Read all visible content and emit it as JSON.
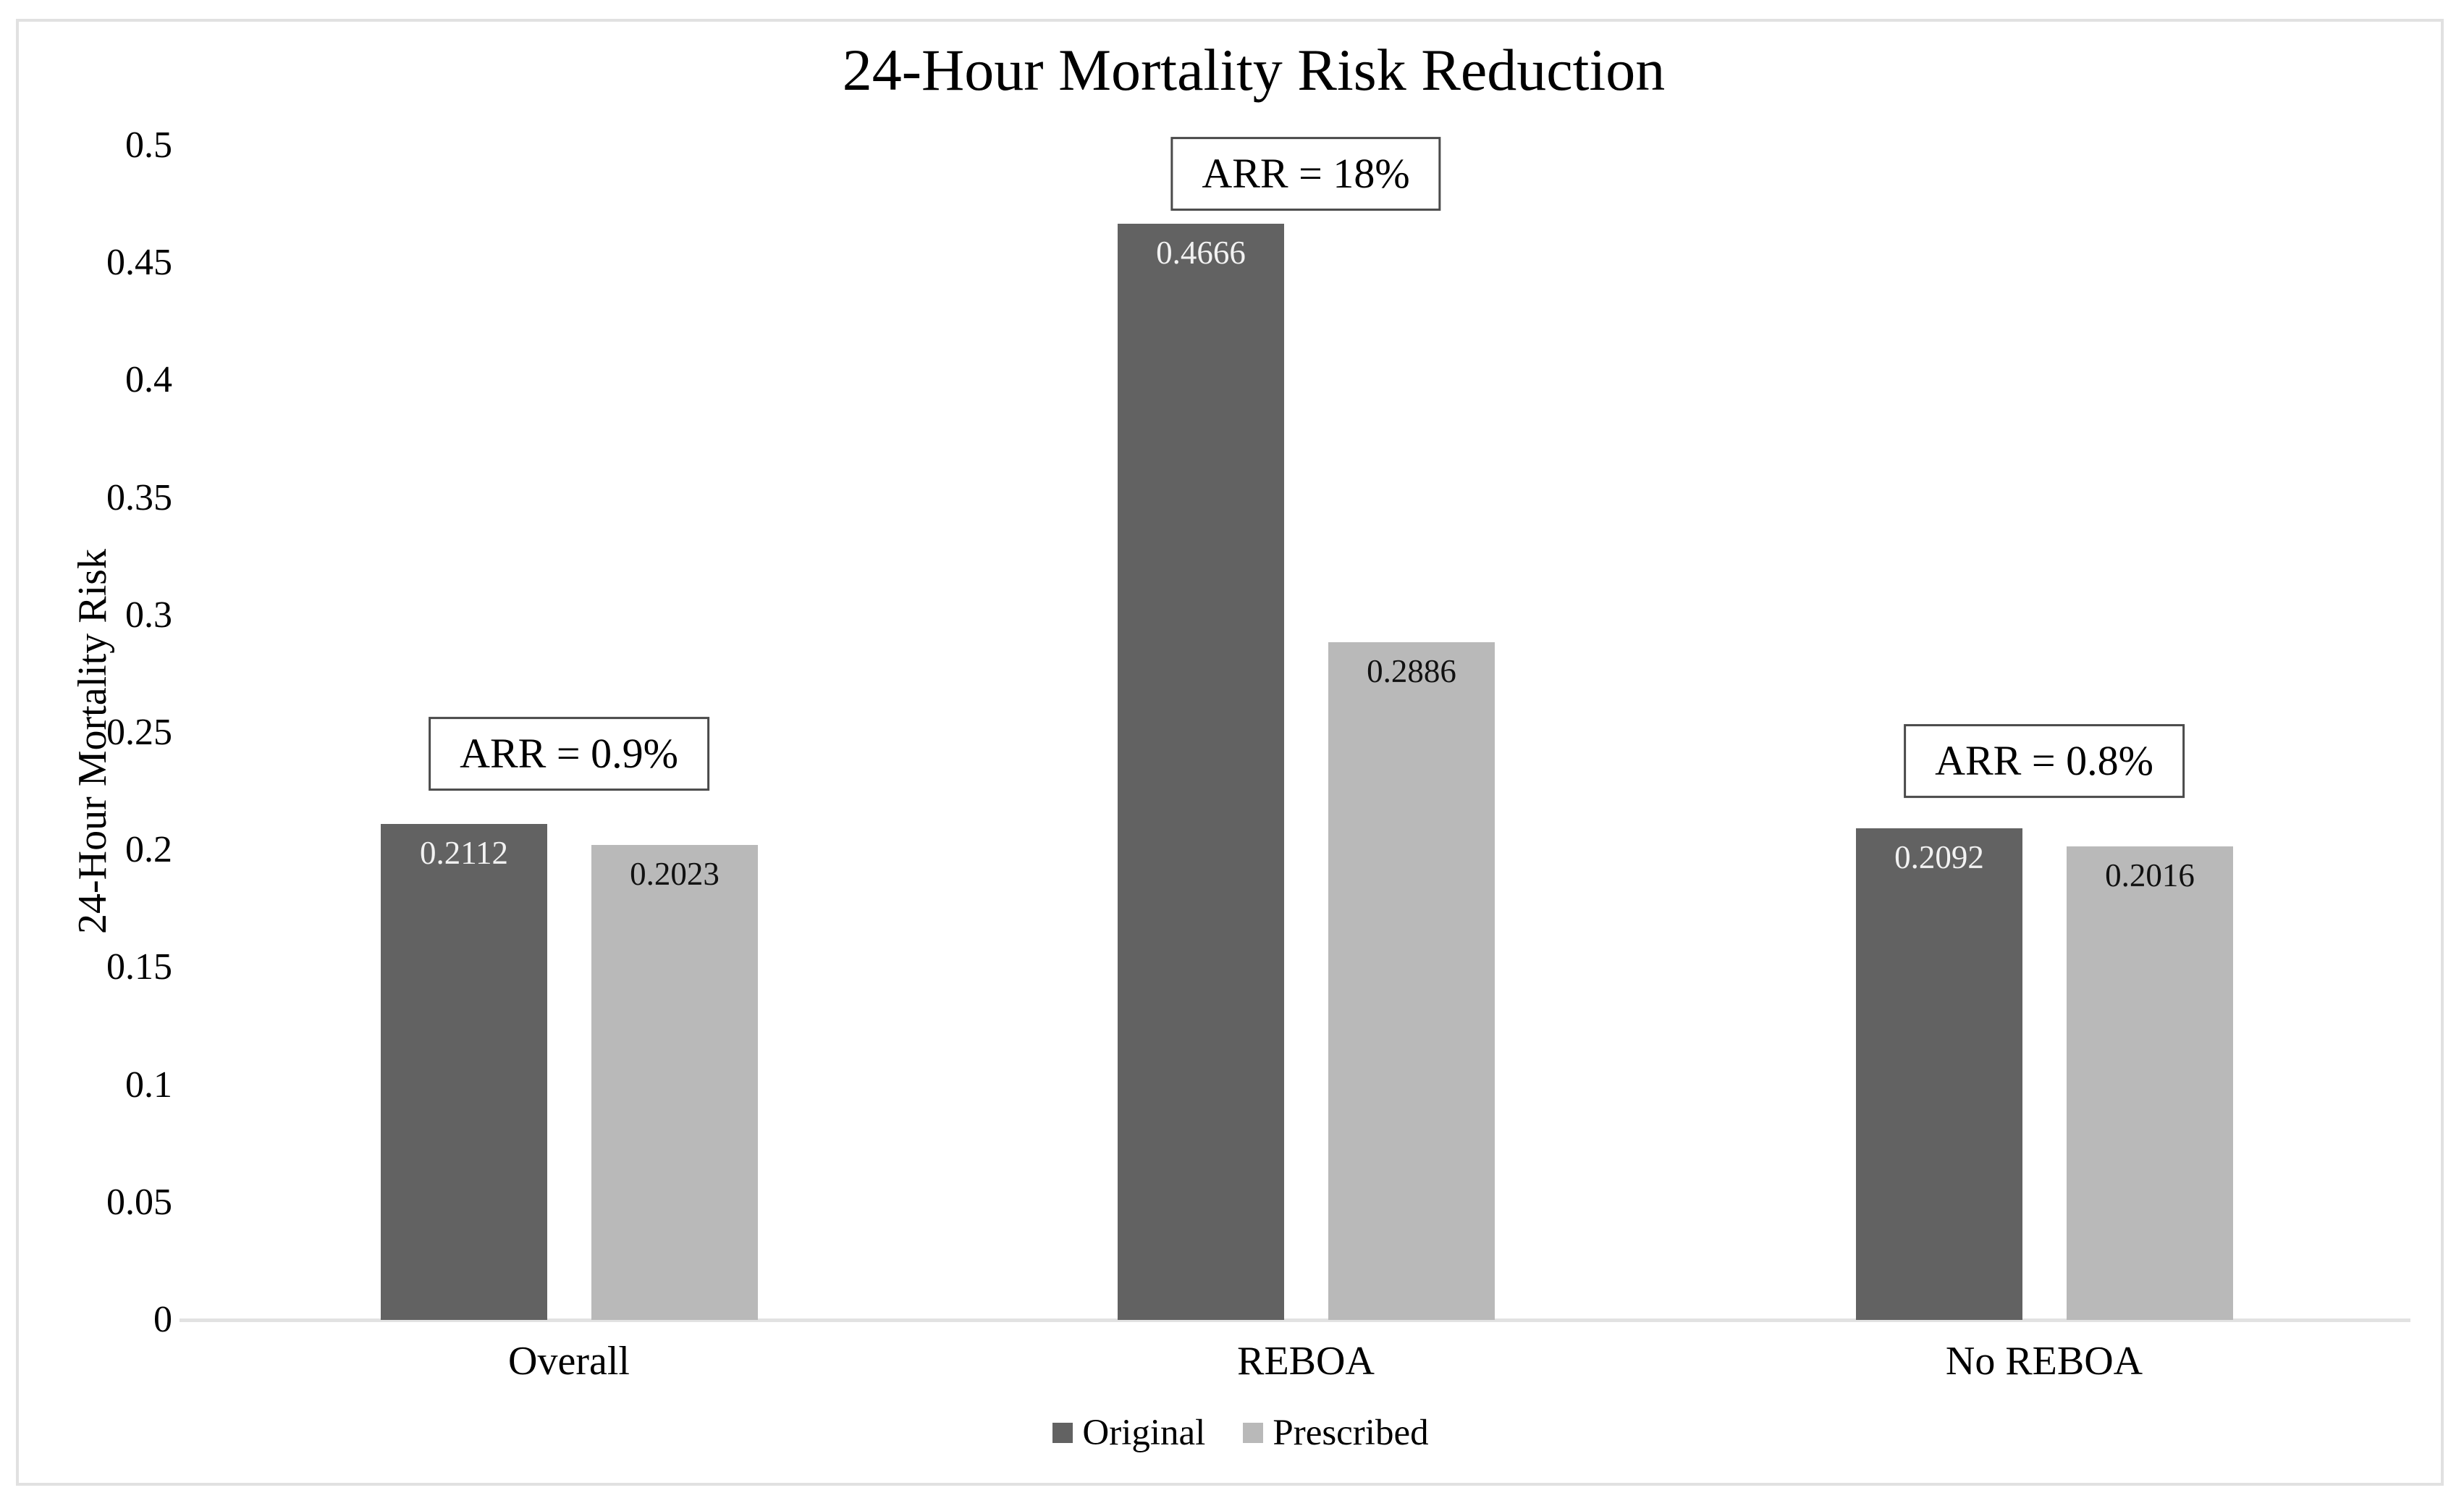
{
  "figure": {
    "background": "#ffffff",
    "border_color": "#e1e1e1"
  },
  "chart_data": {
    "type": "bar",
    "title": "24-Hour Mortality Risk Reduction",
    "xlabel": "",
    "ylabel": "24-Hour Mortality Risk",
    "ylim": [
      0,
      0.5
    ],
    "yticks": [
      0,
      0.05,
      0.1,
      0.15,
      0.2,
      0.25,
      0.3,
      0.35,
      0.4,
      0.45,
      0.5
    ],
    "ytick_labels": [
      "0",
      "0.05",
      "0.1",
      "0.15",
      "0.2",
      "0.25",
      "0.3",
      "0.35",
      "0.4",
      "0.45",
      "0.5"
    ],
    "grid": false,
    "legend_position": "bottom-center",
    "categories": [
      "Overall",
      "REBOA",
      "No REBOA"
    ],
    "series": [
      {
        "name": "Original",
        "color": "#626262",
        "label_color": "#f2f2f2",
        "values": [
          0.2112,
          0.4666,
          0.2092
        ],
        "value_labels": [
          "0.2112",
          "0.4666",
          "0.2092"
        ]
      },
      {
        "name": "Prescribed",
        "color": "#b9b9b9",
        "label_color": "#111111",
        "values": [
          0.2023,
          0.2886,
          0.2016
        ],
        "value_labels": [
          "0.2023",
          "0.2886",
          "0.2016"
        ]
      }
    ],
    "annotations": [
      {
        "text": "ARR = 0.9%",
        "category": "Overall",
        "y_center": 0.241
      },
      {
        "text": "ARR = 18%",
        "category": "REBOA",
        "y_center": 0.488
      },
      {
        "text": "ARR = 0.8%",
        "category": "No REBOA",
        "y_center": 0.238
      }
    ]
  },
  "legend": {
    "items": [
      {
        "label": "Original",
        "color": "#626262"
      },
      {
        "label": "Prescribed",
        "color": "#b9b9b9"
      }
    ]
  }
}
